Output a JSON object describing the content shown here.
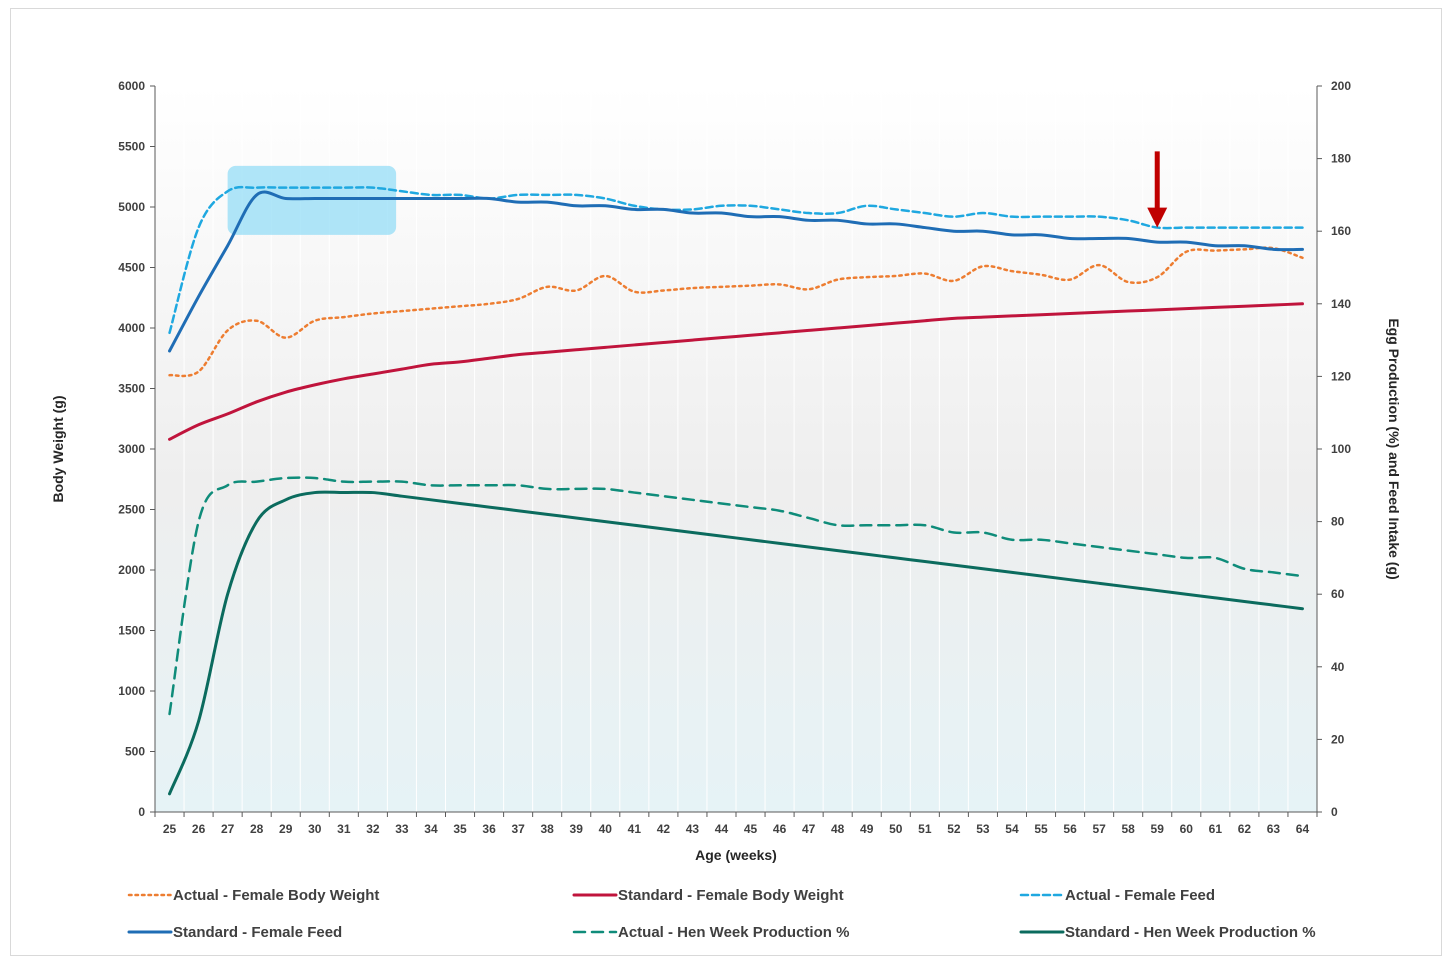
{
  "chart_data": {
    "type": "line",
    "title": "",
    "xlabel": "Age (weeks)",
    "ylabel": "Body Weight (g)",
    "y2label": "Egg Production (%) and Feed Intake (g)",
    "x": [
      25,
      26,
      27,
      28,
      29,
      30,
      31,
      32,
      33,
      34,
      35,
      36,
      37,
      38,
      39,
      40,
      41,
      42,
      43,
      44,
      45,
      46,
      47,
      48,
      49,
      50,
      51,
      52,
      53,
      54,
      55,
      56,
      57,
      58,
      59,
      60,
      61,
      62,
      63,
      64
    ],
    "ylim": [
      0,
      6000
    ],
    "yticks": [
      0,
      500,
      1000,
      1500,
      2000,
      2500,
      3000,
      3500,
      4000,
      4500,
      5000,
      5500,
      6000
    ],
    "y2lim": [
      0,
      200
    ],
    "y2ticks": [
      0,
      20,
      40,
      60,
      80,
      100,
      120,
      140,
      160,
      180,
      200
    ],
    "grid": "vertical",
    "legend_position": "bottom",
    "highlight_box": {
      "x_from": 27,
      "x_to": 32.8,
      "y2_from": 159,
      "y2_to": 178,
      "color": "#7fd6f5"
    },
    "arrow_marker": {
      "x": 59,
      "y2_top": 182,
      "y2_tip": 161,
      "color": "#c00000"
    },
    "series": [
      {
        "name": "Actual - Female Body Weight",
        "axis": "left",
        "style": "dotted",
        "color": "#ed7d31",
        "values": [
          3610,
          3640,
          3980,
          4060,
          3920,
          4060,
          4090,
          4120,
          4140,
          4160,
          4180,
          4200,
          4240,
          4340,
          4310,
          4430,
          4300,
          4310,
          4330,
          4340,
          4350,
          4360,
          4320,
          4400,
          4420,
          4430,
          4450,
          4390,
          4510,
          4470,
          4440,
          4400,
          4520,
          4380,
          4420,
          4630,
          4640,
          4650,
          4660,
          4580
        ]
      },
      {
        "name": "Standard - Female Body Weight",
        "axis": "left",
        "style": "solid",
        "color": "#c0143c",
        "values": [
          3080,
          3200,
          3290,
          3390,
          3470,
          3530,
          3580,
          3620,
          3660,
          3700,
          3720,
          3750,
          3780,
          3800,
          3820,
          3840,
          3860,
          3880,
          3900,
          3920,
          3940,
          3960,
          3980,
          4000,
          4020,
          4040,
          4060,
          4080,
          4090,
          4100,
          4110,
          4120,
          4130,
          4140,
          4150,
          4160,
          4170,
          4180,
          4190,
          4200
        ]
      },
      {
        "name": "Actual - Female Feed",
        "axis": "right",
        "style": "dashed",
        "color": "#1fa8e0",
        "values": [
          132,
          161,
          171,
          172,
          172,
          172,
          172,
          172,
          171,
          170,
          170,
          169,
          170,
          170,
          170,
          169,
          167,
          166,
          166,
          167,
          167,
          166,
          165,
          165,
          167,
          166,
          165,
          164,
          165,
          164,
          164,
          164,
          164,
          163,
          161,
          161,
          161,
          161,
          161,
          161
        ]
      },
      {
        "name": "Standard - Female Feed",
        "axis": "right",
        "style": "solid",
        "color": "#1f6db5",
        "values": [
          127,
          142,
          156,
          170,
          169,
          169,
          169,
          169,
          169,
          169,
          169,
          169,
          168,
          168,
          167,
          167,
          166,
          166,
          165,
          165,
          164,
          164,
          163,
          163,
          162,
          162,
          161,
          160,
          160,
          159,
          159,
          158,
          158,
          158,
          157,
          157,
          156,
          156,
          155,
          155
        ]
      },
      {
        "name": "Actual - Hen Week Production %",
        "axis": "right",
        "style": "longdash",
        "color": "#0f8c7a",
        "values": [
          27,
          80,
          90,
          91,
          92,
          92,
          91,
          91,
          91,
          90,
          90,
          90,
          90,
          89,
          89,
          89,
          88,
          87,
          86,
          85,
          84,
          83,
          81,
          79,
          79,
          79,
          79,
          77,
          77,
          75,
          75,
          74,
          73,
          72,
          71,
          70,
          70,
          67,
          66,
          65
        ]
      },
      {
        "name": "Standard - Hen Week Production %",
        "axis": "right",
        "style": "solid",
        "color": "#0b6b5e",
        "values": [
          5,
          25,
          60,
          80,
          86,
          88,
          88,
          88,
          87,
          86,
          85,
          84,
          83,
          82,
          81,
          80,
          79,
          78,
          77,
          76,
          75,
          74,
          73,
          72,
          71,
          70,
          69,
          68,
          67,
          66,
          65,
          64,
          63,
          62,
          61,
          60,
          59,
          58,
          57,
          56
        ]
      }
    ]
  }
}
